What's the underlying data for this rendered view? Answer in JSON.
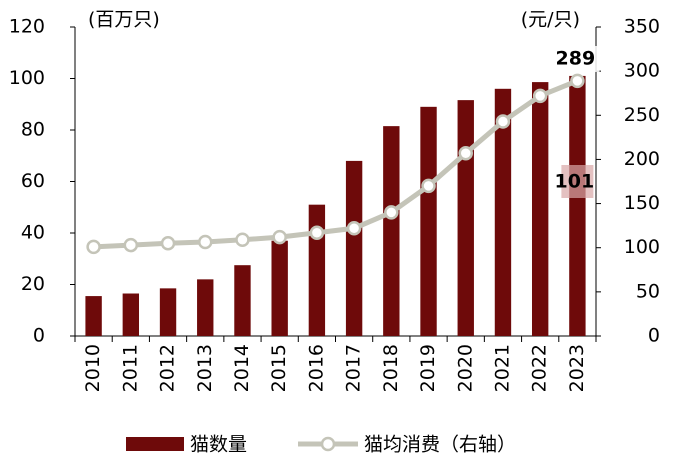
{
  "chart_data": {
    "type": "bar+line",
    "y_unit_label": "(百万只)",
    "y2_unit_label": "(元/只)",
    "categories": [
      "2010",
      "2011",
      "2012",
      "2013",
      "2014",
      "2015",
      "2016",
      "2017",
      "2018",
      "2019",
      "2020",
      "2021",
      "2022",
      "2023"
    ],
    "series": [
      {
        "name": "猫数量",
        "type": "bar",
        "color": "#6e0a0a",
        "values": [
          15.5,
          16.5,
          18.5,
          22,
          27.5,
          37,
          51,
          68,
          81.5,
          89,
          91.6,
          96,
          98.6,
          101
        ]
      },
      {
        "name": "猫均消费（右轴）",
        "type": "line",
        "axis": "y2",
        "color": "#c4c4b8",
        "values": [
          101,
          103,
          105,
          106.5,
          109,
          112,
          117,
          122,
          140,
          170,
          207,
          243,
          272,
          289
        ]
      }
    ],
    "ylim": [
      0,
      120
    ],
    "yticks": [
      0,
      20,
      40,
      60,
      80,
      100,
      120
    ],
    "y2lim": [
      0,
      350
    ],
    "y2ticks": [
      0,
      50,
      100,
      150,
      200,
      250,
      300,
      350
    ],
    "legend": "bottom",
    "grid": false
  }
}
